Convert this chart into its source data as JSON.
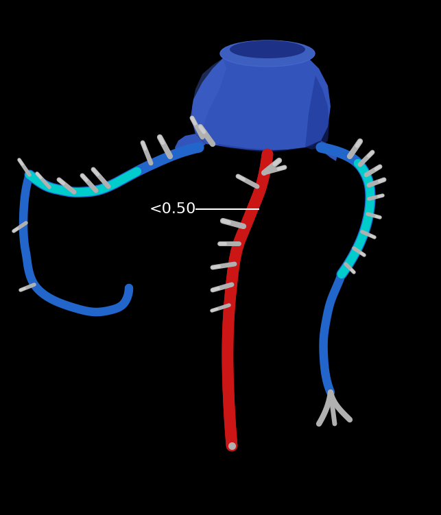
{
  "bg_color": "#000000",
  "aorta_color": "#3355bb",
  "aorta_dark": "#1a3090",
  "aorta_light": "#4466cc",
  "aorta_top": "#5577dd",
  "lad_red_color": "#cc1515",
  "lad_dark_red": "#991010",
  "cx_blue_color": "#2266cc",
  "cx_dark_blue": "#1144aa",
  "cyan_color": "#00cccc",
  "cyan_dark": "#009999",
  "branch_gray": "#b0b0b0",
  "branch_dark": "#888888",
  "annotation_text": "<0.50",
  "annotation_line": "—",
  "annotation_color": "#ffffff",
  "annotation_fontsize": 16,
  "figsize": [
    6.43,
    7.51
  ],
  "dpi": 100
}
